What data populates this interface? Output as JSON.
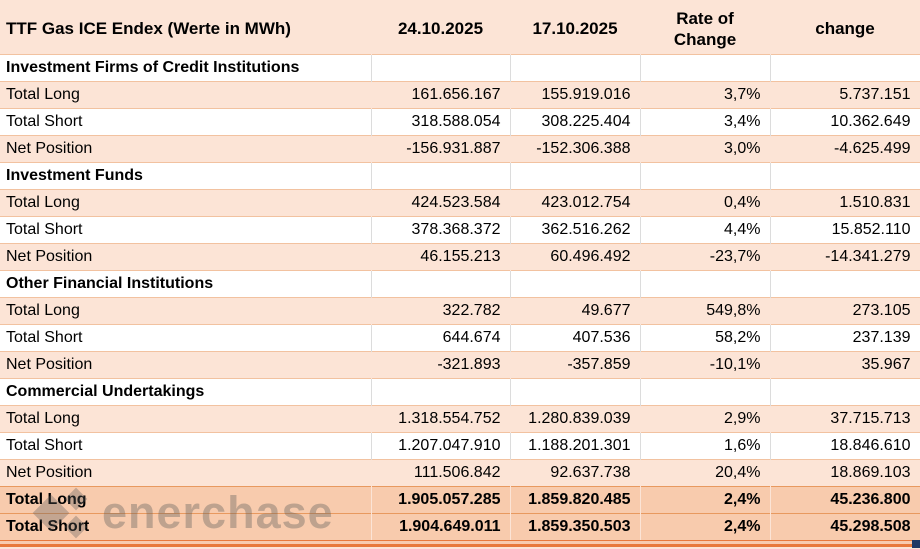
{
  "chart_data": {
    "type": "table",
    "title": "TTF Gas ICE Endex (Werte in MWh)",
    "columns": [
      "24.10.2025",
      "17.10.2025",
      "Rate of Change",
      "change"
    ],
    "sections": [
      {
        "label": "Investment Firms of Credit Institutions",
        "rows": [
          {
            "label": "Total Long",
            "values": [
              "161.656.167",
              "155.919.016",
              "3,7%",
              "5.737.151"
            ]
          },
          {
            "label": "Total Short",
            "values": [
              "318.588.054",
              "308.225.404",
              "3,4%",
              "10.362.649"
            ]
          },
          {
            "label": "Net Position",
            "values": [
              "-156.931.887",
              "-152.306.388",
              "3,0%",
              "-4.625.499"
            ]
          }
        ]
      },
      {
        "label": "Investment Funds",
        "rows": [
          {
            "label": "Total Long",
            "values": [
              "424.523.584",
              "423.012.754",
              "0,4%",
              "1.510.831"
            ]
          },
          {
            "label": "Total Short",
            "values": [
              "378.368.372",
              "362.516.262",
              "4,4%",
              "15.852.110"
            ]
          },
          {
            "label": "Net Position",
            "values": [
              "46.155.213",
              "60.496.492",
              "-23,7%",
              "-14.341.279"
            ]
          }
        ]
      },
      {
        "label": "Other Financial Institutions",
        "rows": [
          {
            "label": "Total Long",
            "values": [
              "322.782",
              "49.677",
              "549,8%",
              "273.105"
            ]
          },
          {
            "label": "Total Short",
            "values": [
              "644.674",
              "407.536",
              "58,2%",
              "237.139"
            ]
          },
          {
            "label": "Net Position",
            "values": [
              "-321.893",
              "-357.859",
              "-10,1%",
              "35.967"
            ]
          }
        ]
      },
      {
        "label": "Commercial Undertakings",
        "rows": [
          {
            "label": "Total Long",
            "values": [
              "1.318.554.752",
              "1.280.839.039",
              "2,9%",
              "37.715.713"
            ]
          },
          {
            "label": "Total Short",
            "values": [
              "1.207.047.910",
              "1.188.201.301",
              "1,6%",
              "18.846.610"
            ]
          },
          {
            "label": "Net Position",
            "values": [
              "111.506.842",
              "92.637.738",
              "20,4%",
              "18.869.103"
            ]
          }
        ]
      }
    ],
    "totals": [
      {
        "label": "Total Long",
        "values": [
          "1.905.057.285",
          "1.859.820.485",
          "2,4%",
          "45.236.800"
        ]
      },
      {
        "label": "Total Short",
        "values": [
          "1.904.649.011",
          "1.859.350.503",
          "2,4%",
          "45.298.508"
        ]
      }
    ],
    "layout": {
      "grid": true,
      "banded_rows": true,
      "number_format": "de-DE thousands dots, comma decimals"
    }
  },
  "watermark": {
    "text": "enerchase"
  },
  "colors": {
    "band_fill": "#FCE4D6",
    "plain_fill": "#FFFFFF",
    "totals_fill": "#F8CBAD",
    "row_border": "#F2C2A0",
    "outer_bottom_border": "#E8793A",
    "fill_handle": "#1F3864",
    "watermark_gray": "#5A5A5A",
    "text": "#000000"
  }
}
